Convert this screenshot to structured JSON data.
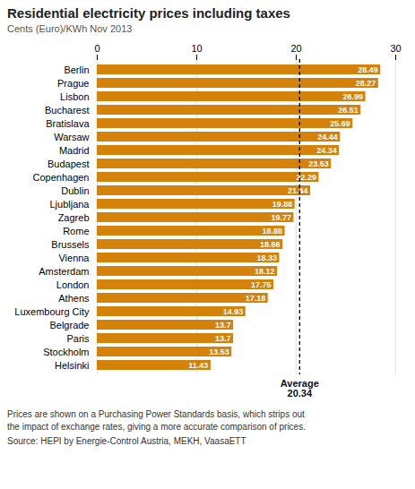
{
  "chart_data": {
    "type": "bar",
    "orientation": "horizontal",
    "title": "Residential electricity prices including taxes",
    "subtitle": "Cents (Euro)/KWh Nov 2013",
    "categories": [
      "Helsinki",
      "Stockholm",
      "Paris",
      "Belgrade",
      "Luxembourg City",
      "Athens",
      "London",
      "Amsterdam",
      "Vienna",
      "Brussels",
      "Rome",
      "Zagreb",
      "Ljubljana",
      "Dublin",
      "Copenhagen",
      "Budapest",
      "Madrid",
      "Warsaw",
      "Bratislava",
      "Bucharest",
      "Lisbon",
      "Prague",
      "Berlin"
    ],
    "values": [
      11.43,
      13.53,
      13.7,
      13.7,
      14.93,
      17.18,
      17.75,
      18.12,
      18.33,
      18.66,
      18.88,
      19.77,
      19.88,
      21.44,
      22.29,
      23.53,
      24.34,
      24.44,
      25.69,
      26.51,
      26.99,
      28.27,
      28.49
    ],
    "color": "#d4820a",
    "data_labels": true,
    "xlim": [
      0,
      30
    ],
    "xticks": [
      0,
      10,
      20,
      30
    ],
    "grid": true,
    "reference_line": {
      "value": 20.34,
      "label_lines": [
        "Average",
        "20.34"
      ],
      "line_style": "dashed"
    },
    "notes": [
      "Prices are shown on a Purchasing Power Standards basis, which strips out",
      "the impact of exchange rates, giving a more accurate comparison of prices."
    ],
    "source": "Source: HEPI by Energie-Control Austria, MEKH, VaasaETT"
  }
}
